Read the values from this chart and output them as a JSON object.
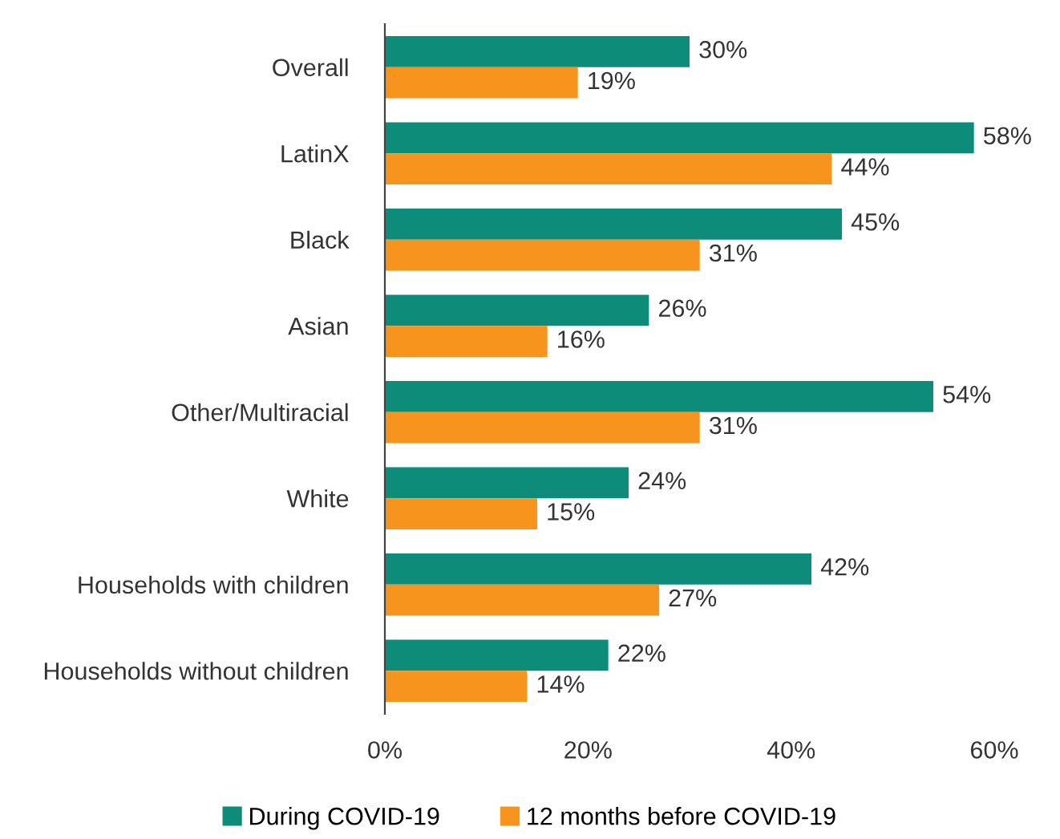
{
  "chart_data": {
    "type": "bar",
    "orientation": "horizontal",
    "categories": [
      "Overall",
      "LatinX",
      "Black",
      "Asian",
      "Other/Multiracial",
      "White",
      "Households with children",
      "Households without children"
    ],
    "series": [
      {
        "name": "During COVID-19",
        "color": "#0e8c7a",
        "values": [
          30,
          58,
          45,
          26,
          54,
          24,
          42,
          22
        ],
        "value_labels": [
          "30%",
          "58%",
          "45%",
          "26%",
          "54%",
          "24%",
          "42%",
          "22%"
        ]
      },
      {
        "name": "12 months before COVID-19",
        "color": "#f7941d",
        "values": [
          19,
          44,
          31,
          16,
          31,
          15,
          27,
          14
        ],
        "value_labels": [
          "19%",
          "44%",
          "31%",
          "16%",
          "31%",
          "15%",
          "27%",
          "14%"
        ]
      }
    ],
    "xlim": [
      0,
      60
    ],
    "xticks": [
      {
        "value": 0,
        "label": "0%"
      },
      {
        "value": 20,
        "label": "20%"
      },
      {
        "value": 40,
        "label": "40%"
      },
      {
        "value": 60,
        "label": "60%"
      }
    ],
    "grid": false,
    "legend": "bottom"
  }
}
